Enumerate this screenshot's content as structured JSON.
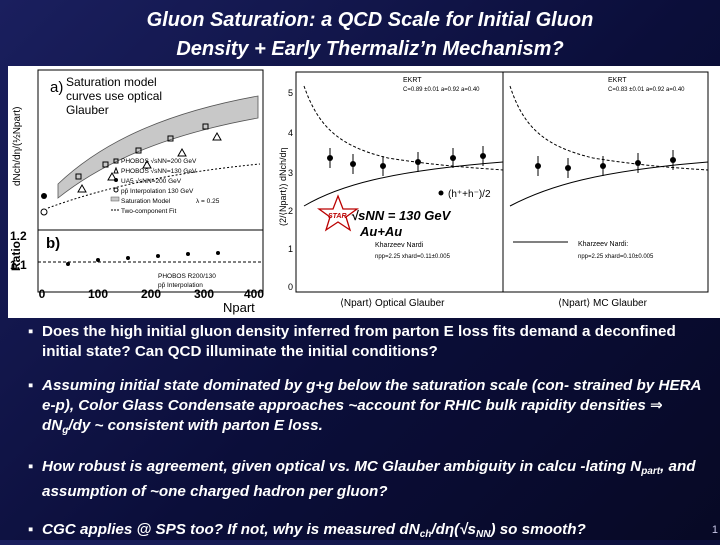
{
  "title": {
    "line1": "Gluon Saturation: a QCD Scale for Initial Gluon",
    "line2": "Density + Early Thermaliz’n Mechanism?"
  },
  "figure": {
    "panel_a_label": "a)",
    "panel_b_label": "b)",
    "note": [
      "Saturation model",
      "curves use optical",
      "Glauber"
    ],
    "ylabel_top": "dNch/dη/(½Npart)",
    "ylabel_bottom": "Ratio",
    "xlabel": "Npart",
    "x_ticks": [
      "0",
      "100",
      "200",
      "300",
      "400"
    ],
    "ratio_ticks": [
      "1.2",
      "1.1"
    ],
    "legend": [
      "PHOBOS √sNN=200 GeV",
      "PHOBOS √sNN=130 GeV",
      "UA5 √sNN=200 GeV",
      "pp̄ Interpolation 130 GeV",
      "Saturation Model",
      "Two-component Fit"
    ],
    "sat_param": "λ = 0.25",
    "bottom_legend": [
      "PHOBOS R200/130",
      "pp̄ Interpolation"
    ],
    "mid_ylabel": "(2/⟨Npart⟩) dNch/dη",
    "mid_y_ticks": [
      "5",
      "4",
      "3",
      "2",
      "1",
      "0"
    ],
    "ekrt": [
      "EKRT",
      "C=0.89 ±0.01 a=0.92 a=0.40"
    ],
    "ekrt_right": [
      "EKRT",
      "C=0.83 ±0.01 a=0.92 a=0.40"
    ],
    "hh_label": "(h⁺+h⁻)/2",
    "star_label": "STAR",
    "energy": "√sNN = 130 GeV",
    "system": "Au+Au",
    "kn_left": [
      "Kharzeev Nardi",
      "npp=2.25   xhard=0.11±0.005"
    ],
    "kn_right": [
      "Kharzeev Nardi:",
      "npp=2.25   xhard=0.10±0.005"
    ],
    "bottom_left_caption": "⟨Npart⟩ Optical Glauber",
    "bottom_right_caption": "⟨Npart⟩ MC Glauber"
  },
  "bullets": {
    "marker": "▪",
    "b1": "Does the high initial gluon density inferred from parton E loss fits demand a deconfined initial state? Can QCD illuminate the initial conditions?",
    "b2_a": "Assuming initial state dominated by g+g below the saturation scale (con- strained by HERA e-p), Color Glass Condensate approaches ~account for RHIC bulk rapidity densities ⇒ dN",
    "b2_sub": "g",
    "b2_b": "/dy ~ consistent with parton E loss.",
    "b3_a": "How robust is agreement, given optical vs. MC Glauber ambiguity in calcu -lating N",
    "b3_sub": "part",
    "b3_b": ", and assumption of ~one charged hadron per gluon?",
    "b4_a": "CGC applies @ SPS too?  If not, why is measured dN",
    "b4_sub1": "ch",
    "b4_b": "/dη(√s",
    "b4_sub2": "NN",
    "b4_c": ") so smooth?"
  },
  "page_number": "1"
}
